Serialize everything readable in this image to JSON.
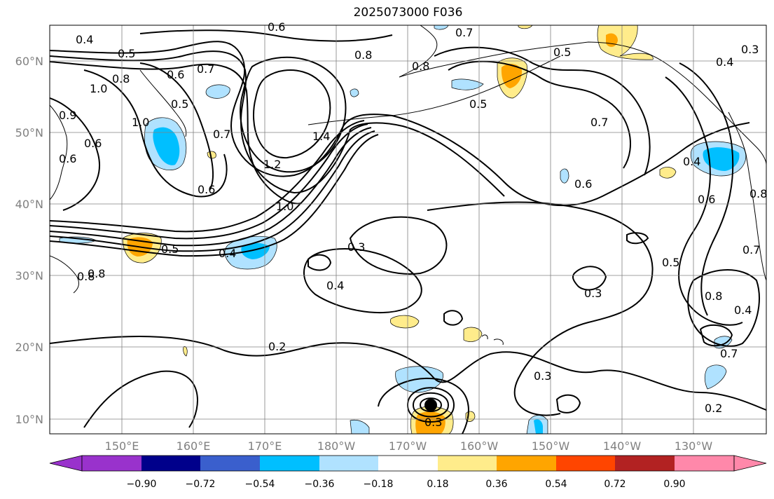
{
  "title": "2025073000 F036",
  "map": {
    "lat_labels": [
      "60°N",
      "50°N",
      "40°N",
      "30°N",
      "20°N",
      "10°N"
    ],
    "lon_labels": [
      "150°E",
      "160°E",
      "170°E",
      "180°W",
      "170°W",
      "160°W",
      "150°W",
      "140°W",
      "130°W"
    ],
    "contour_labels": [
      "0.4",
      "0.5",
      "0.6",
      "0.7",
      "0.8",
      "1.0",
      "1.0",
      "0.5",
      "0.6",
      "0.7",
      "0.6",
      "1.2",
      "1.4",
      "1.0",
      "0.5",
      "0.4",
      "0.3",
      "0.4",
      "0.2",
      "0.8",
      "0.8",
      "0.5",
      "0.7",
      "0.6",
      "0.4",
      "0.3",
      "0.5",
      "0.8",
      "0.3",
      "0.2",
      "0.7",
      "0.6",
      "0.3",
      "0.8",
      "0.4",
      "0.7",
      "0.5",
      "0.4",
      "0.3",
      "0.9",
      "0.6",
      "0.8",
      "0.8",
      "0.6",
      "0.7"
    ],
    "grid": true,
    "coastline_color": "#000000",
    "contour_color": "#000000"
  },
  "colorbar": {
    "ticks": [
      "−0.90",
      "−0.72",
      "−0.54",
      "−0.36",
      "−0.18",
      "0.18",
      "0.36",
      "0.54",
      "0.72",
      "0.90"
    ],
    "colors": [
      "#9932CC",
      "#00008B",
      "#3A5FCD",
      "#00BFFF",
      "#B0E2FF",
      "#FFFFFF",
      "#FFEC8B",
      "#FFA500",
      "#FF4500",
      "#B22222",
      "#FF88AA"
    ],
    "extend": "both"
  }
}
